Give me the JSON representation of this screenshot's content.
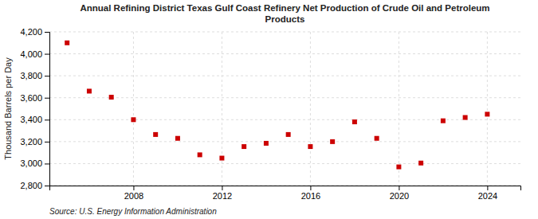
{
  "chart_data": {
    "type": "scatter",
    "title": "Annual Refining District Texas Gulf Coast Refinery Net Production of Crude Oil and Petroleum\nProducts",
    "ylabel": "Thousand Barrels per Day",
    "source": "Source: U.S. Energy Information Administration",
    "x": [
      2005,
      2006,
      2007,
      2008,
      2009,
      2010,
      2011,
      2012,
      2013,
      2014,
      2015,
      2016,
      2017,
      2018,
      2019,
      2020,
      2021,
      2022,
      2023,
      2024
    ],
    "values": [
      4100,
      3660,
      3605,
      3400,
      3265,
      3230,
      3080,
      3050,
      3155,
      3185,
      3265,
      3155,
      3200,
      3380,
      3230,
      2970,
      3005,
      3390,
      3420,
      3450
    ],
    "color": "#cc0000",
    "marker": "square",
    "xlim": [
      2004.2,
      2025.5
    ],
    "xticks": [
      2008,
      2012,
      2016,
      2020,
      2024
    ],
    "ylim": [
      2800,
      4200
    ],
    "yticks": [
      {
        "value": 2800,
        "label": "2,800"
      },
      {
        "value": 3000,
        "label": "3,000"
      },
      {
        "value": 3200,
        "label": "3,200"
      },
      {
        "value": 3400,
        "label": "3,400"
      },
      {
        "value": 3600,
        "label": "3,600"
      },
      {
        "value": 3800,
        "label": "3,800"
      },
      {
        "value": 4000,
        "label": "4,000"
      },
      {
        "value": 4200,
        "label": "4,200"
      }
    ],
    "grid": true
  }
}
